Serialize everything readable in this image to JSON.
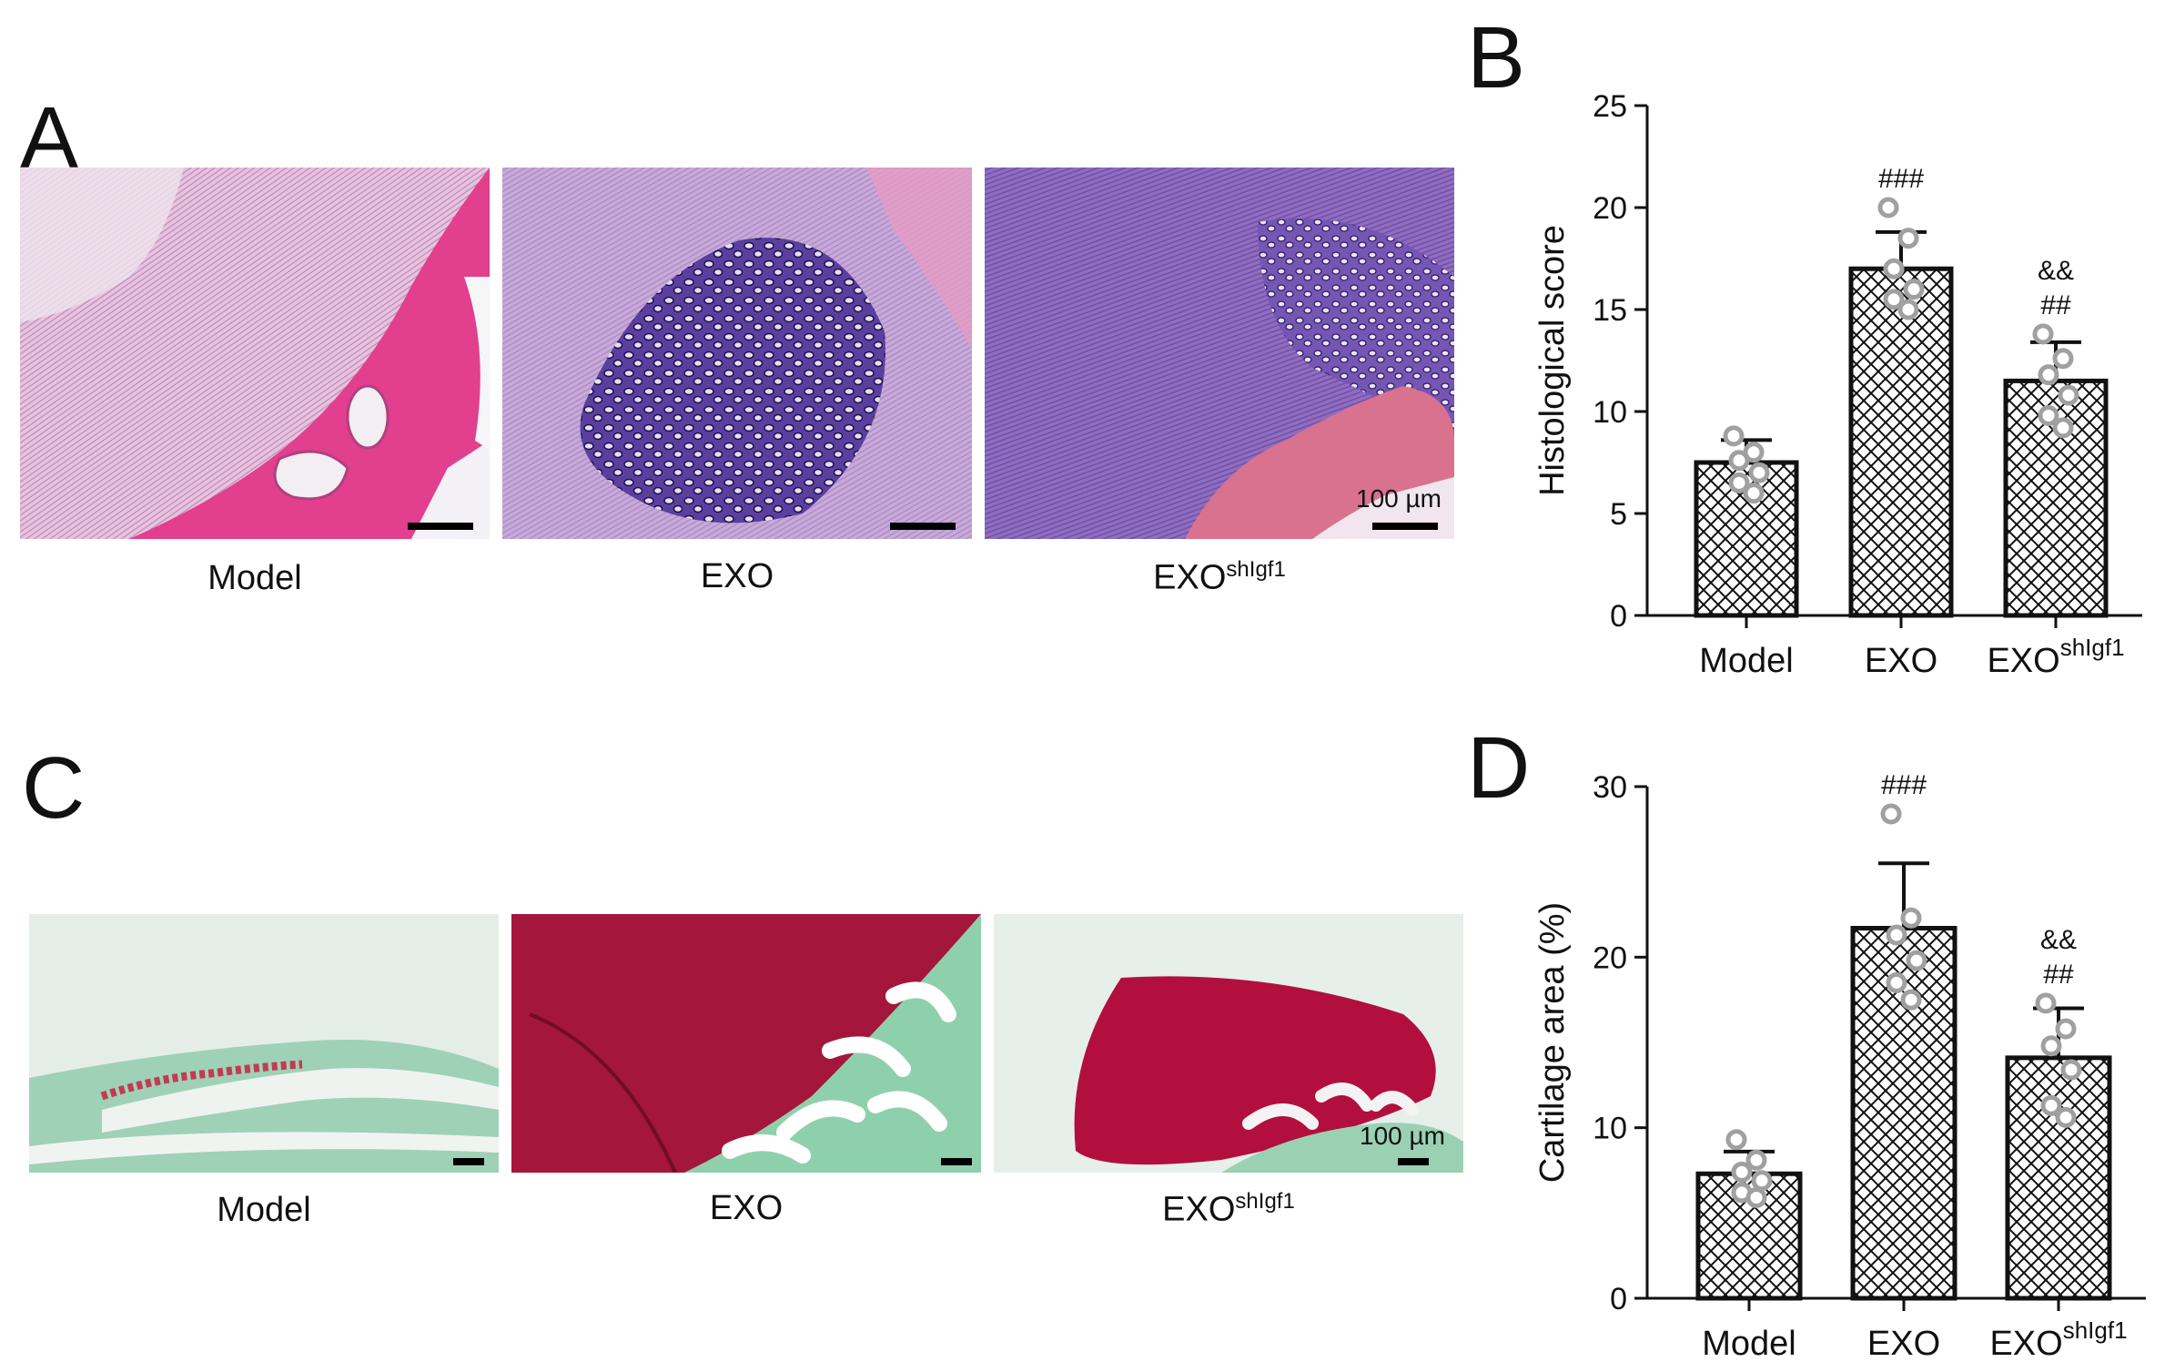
{
  "panels": {
    "A": {
      "letter": "A",
      "images": [
        {
          "caption_main": "Model",
          "caption_sup": "",
          "stain": "H&E",
          "scalebar_label": ""
        },
        {
          "caption_main": "EXO",
          "caption_sup": "",
          "stain": "H&E",
          "scalebar_label": ""
        },
        {
          "caption_main": "EXO",
          "caption_sup": "shIgf1",
          "stain": "H&E",
          "scalebar_label": "100 µm"
        }
      ]
    },
    "C": {
      "letter": "C",
      "images": [
        {
          "caption_main": "Model",
          "caption_sup": "",
          "stain": "Safranin O / Fast green",
          "scalebar_label": ""
        },
        {
          "caption_main": "EXO",
          "caption_sup": "",
          "stain": "Safranin O / Fast green",
          "scalebar_label": ""
        },
        {
          "caption_main": "EXO",
          "caption_sup": "shIgf1",
          "stain": "Safranin O / Fast green",
          "scalebar_label": "100 µm"
        }
      ]
    }
  },
  "chart_data": [
    {
      "panel": "B",
      "type": "bar",
      "categories": [
        "Model",
        "EXO",
        "EXO^shIgf1"
      ],
      "category_main": [
        "Model",
        "EXO",
        "EXO"
      ],
      "category_sup": [
        "",
        "",
        "shIgf1"
      ],
      "values": [
        7.5,
        17.0,
        11.5
      ],
      "errors": [
        1.1,
        1.8,
        1.9
      ],
      "points": [
        [
          8.8,
          8.0,
          7.6,
          7.0,
          6.5,
          6.0
        ],
        [
          20.0,
          18.5,
          17.0,
          16.0,
          15.5,
          15.0
        ],
        [
          13.8,
          12.6,
          11.8,
          10.8,
          9.8,
          9.2
        ]
      ],
      "annotations": [
        [],
        [
          "###"
        ],
        [
          "&&",
          "##"
        ]
      ],
      "ylabel": "Histological score",
      "ylim": [
        0,
        25
      ],
      "yticks": [
        0,
        5,
        10,
        15,
        20,
        25
      ],
      "grid": false,
      "bar_fill": "crosshatch",
      "point_color": "#a0a0a0"
    },
    {
      "panel": "D",
      "type": "bar",
      "categories": [
        "Model",
        "EXO",
        "EXO^shIgf1"
      ],
      "category_main": [
        "Model",
        "EXO",
        "EXO"
      ],
      "category_sup": [
        "",
        "",
        "shIgf1"
      ],
      "values": [
        7.3,
        21.7,
        14.1
      ],
      "errors": [
        1.3,
        3.8,
        2.9
      ],
      "points": [
        [
          9.3,
          8.1,
          7.4,
          6.9,
          6.2,
          5.9
        ],
        [
          28.4,
          22.3,
          21.3,
          19.8,
          18.5,
          17.5
        ],
        [
          17.3,
          15.8,
          14.8,
          13.4,
          11.3,
          10.6
        ]
      ],
      "annotations": [
        [],
        [
          "###"
        ],
        [
          "&&",
          "##"
        ]
      ],
      "ylabel": "Cartilage area (%)",
      "ylim": [
        0,
        30
      ],
      "yticks": [
        0,
        10,
        20,
        30
      ],
      "grid": false,
      "bar_fill": "crosshatch",
      "point_color": "#a0a0a0"
    }
  ],
  "chart_letters": [
    "B",
    "D"
  ]
}
